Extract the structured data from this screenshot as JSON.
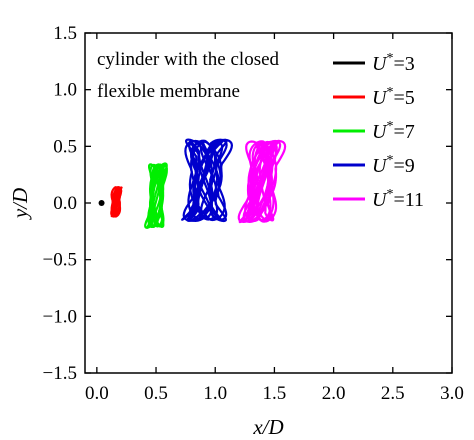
{
  "chart_data": {
    "type": "scatter",
    "title": "",
    "annotation": [
      "cylinder with the closed",
      "flexible membrane"
    ],
    "xlabel": "x/D",
    "ylabel": "y/D",
    "xlim": [
      -0.1,
      3.0
    ],
    "ylim": [
      -1.5,
      1.5
    ],
    "xticks": [
      0.0,
      0.5,
      1.0,
      1.5,
      2.0,
      2.5,
      3.0
    ],
    "yticks": [
      -1.5,
      -1.0,
      -0.5,
      0.0,
      0.5,
      1.0,
      1.5
    ],
    "xtick_labels": [
      "0.0",
      "0.5",
      "1.0",
      "1.5",
      "2.0",
      "2.5",
      "3.0"
    ],
    "ytick_labels": [
      "−1.5",
      "−1.0",
      "−0.5",
      "0.0",
      "0.5",
      "1.0",
      "1.5"
    ],
    "grid": false,
    "legend_position": "top-right",
    "series": [
      {
        "name": "U*=3",
        "label_var": "U",
        "label_sup": "*",
        "label_val": "=3",
        "color": "#000000",
        "x_range": [
          0.03,
          0.05
        ],
        "y_range": [
          -0.02,
          0.02
        ]
      },
      {
        "name": "U*=5",
        "label_var": "U",
        "label_sup": "*",
        "label_val": "=5",
        "color": "#ff0000",
        "x_range": [
          0.12,
          0.21
        ],
        "y_range": [
          -0.12,
          0.14
        ]
      },
      {
        "name": "U*=7",
        "label_var": "U",
        "label_sup": "*",
        "label_val": "=7",
        "color": "#00ee00",
        "x_range": [
          0.42,
          0.6
        ],
        "y_range": [
          -0.22,
          0.35
        ]
      },
      {
        "name": "U*=9",
        "label_var": "U",
        "label_sup": "*",
        "label_val": "=9",
        "color": "#0000cc",
        "x_range": [
          0.72,
          1.1
        ],
        "y_range": [
          -0.16,
          0.56
        ]
      },
      {
        "name": "U*=11",
        "label_var": "U",
        "label_sup": "*",
        "label_val": "=11",
        "color": "#ff00ff",
        "x_range": [
          1.23,
          1.55
        ],
        "y_range": [
          -0.17,
          0.55
        ]
      }
    ]
  }
}
